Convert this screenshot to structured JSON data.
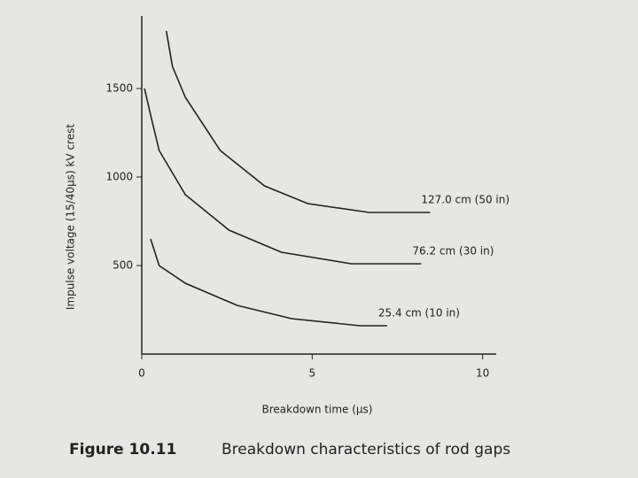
{
  "chart_data": {
    "type": "line",
    "x_label": "Breakdown time (µs)",
    "y_label": "Impulse voltage (15/40µs) kV crest",
    "caption_label": "Figure 10.11",
    "caption": "Breakdown characteristics of rod gaps",
    "xlim": [
      0,
      10.4
    ],
    "ylim": [
      0,
      1900
    ],
    "xticks": [
      0,
      5,
      10
    ],
    "yticks": [
      500,
      1000,
      1500
    ],
    "grid": false,
    "series": [
      {
        "name": "127.0 cm (50 in)",
        "color": "#222222",
        "x": [
          0.72,
          0.9,
          1.28,
          2.3,
          3.6,
          4.87,
          6.67,
          8.46
        ],
        "values": [
          1825,
          1625,
          1450,
          1150,
          950,
          850,
          800,
          800
        ]
      },
      {
        "name": "76.2 cm (30 in)",
        "color": "#222222",
        "x": [
          0.08,
          0.26,
          0.51,
          1.28,
          2.56,
          4.1,
          6.15,
          8.2
        ],
        "values": [
          1500,
          1350,
          1150,
          900,
          700,
          575,
          510,
          510
        ]
      },
      {
        "name": "25.4 cm (10 in)",
        "color": "#222222",
        "x": [
          0.26,
          0.51,
          1.28,
          2.8,
          4.4,
          6.4,
          7.2
        ],
        "values": [
          650,
          500,
          400,
          275,
          200,
          160,
          160
        ]
      }
    ]
  }
}
